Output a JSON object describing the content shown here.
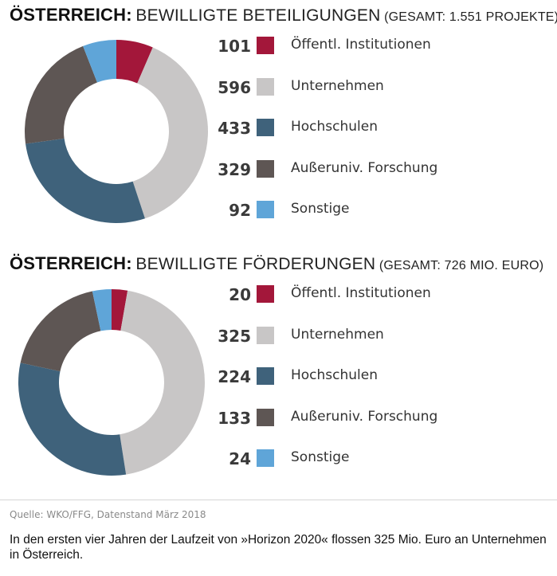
{
  "chart_data": [
    {
      "type": "pie",
      "title_strong": "ÖSTERREICH:",
      "title_light": "BEWILLIGTE BETEILIGUNGEN",
      "subtitle": "(GESAMT: 1.551 PROJEKTE)",
      "categories": [
        "Öffentl. Institutionen",
        "Unternehmen",
        "Hochschulen",
        "Außeruniv. Forschung",
        "Sonstige"
      ],
      "values": [
        101,
        596,
        433,
        329,
        92
      ],
      "value_labels": [
        "101",
        "596",
        "433",
        "329",
        "92"
      ],
      "colors": [
        "#a3173a",
        "#c8c6c6",
        "#3f627b",
        "#5e5654",
        "#5fa5d8"
      ],
      "legend_position": "right"
    },
    {
      "type": "pie",
      "title_strong": "ÖSTERREICH:",
      "title_light": "BEWILLIGTE FÖRDERUNGEN",
      "subtitle": "(GESAMT: 726 MIO. EURO)",
      "categories": [
        "Öffentl. Institutionen",
        "Unternehmen",
        "Hochschulen",
        "Außeruniv. Forschung",
        "Sonstige"
      ],
      "values": [
        20,
        325,
        224,
        133,
        24
      ],
      "value_labels": [
        "20",
        "325",
        "224",
        "133",
        "24"
      ],
      "colors": [
        "#a3173a",
        "#c8c6c6",
        "#3f627b",
        "#5e5654",
        "#5fa5d8"
      ],
      "legend_position": "right"
    }
  ],
  "source": "Quelle: WKO/FFG, Datenstand März 2018",
  "caption": "In den ersten vier Jahren der Laufzeit von »Horizon 2020« flossen 325 Mio. Euro an Unternehmen in Österreich."
}
